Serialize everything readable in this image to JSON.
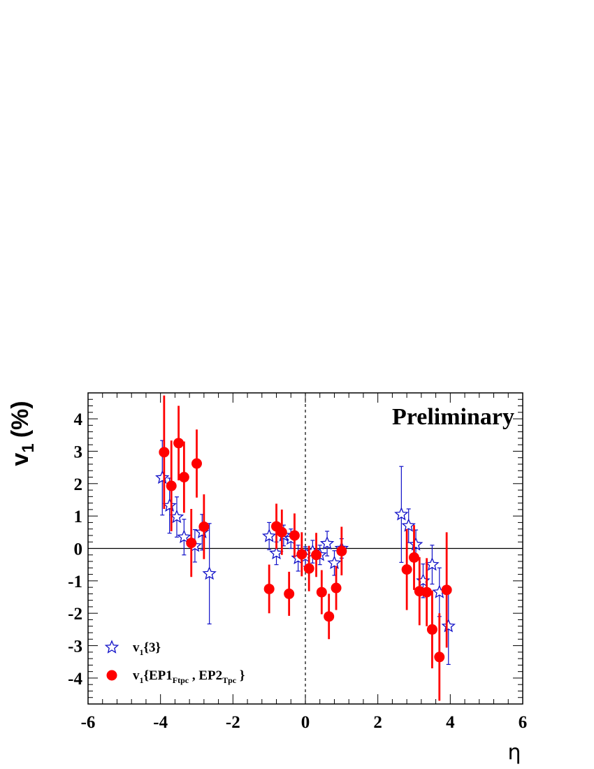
{
  "chart_data": {
    "type": "scatter",
    "annotation": "Preliminary",
    "xlabel": "η",
    "ylabel_main": "v",
    "ylabel_sub": "1",
    "ylabel_unit": "(%)",
    "xlim": [
      -6,
      6
    ],
    "ylim": [
      -4.8,
      4.8
    ],
    "x_ticks": [
      "-6",
      "-4",
      "-2",
      "0",
      "2",
      "4",
      "6"
    ],
    "y_ticks": [
      "4",
      "3",
      "2",
      "1",
      "0",
      "-1",
      "-2",
      "-3",
      "-4"
    ],
    "reference_lines": {
      "horizontal_y": 0,
      "vertical_x_dashed": 0
    },
    "legend_placement": "bottom-left",
    "series": [
      {
        "legend_main": "v",
        "legend_sub": "1",
        "legend_tail": "{3}",
        "marker": "open-star",
        "color": "#1010c8",
        "points": [
          {
            "x": -3.95,
            "y": 2.18,
            "err": 1.15
          },
          {
            "x": -3.75,
            "y": 1.32,
            "err": 0.85
          },
          {
            "x": -3.55,
            "y": 0.97,
            "err": 0.62
          },
          {
            "x": -3.35,
            "y": 0.35,
            "err": 0.55
          },
          {
            "x": -3.05,
            "y": 0.08,
            "err": 0.5
          },
          {
            "x": -2.85,
            "y": 0.5,
            "err": 0.55
          },
          {
            "x": -2.65,
            "y": -0.78,
            "err": 1.55
          },
          {
            "x": -1.0,
            "y": 0.38,
            "err": 0.42
          },
          {
            "x": -0.8,
            "y": -0.15,
            "err": 0.35
          },
          {
            "x": -0.6,
            "y": 0.4,
            "err": 0.32
          },
          {
            "x": -0.4,
            "y": 0.3,
            "err": 0.3
          },
          {
            "x": -0.2,
            "y": -0.3,
            "err": 0.4
          },
          {
            "x": 0.0,
            "y": -0.25,
            "err": 0.3
          },
          {
            "x": 0.2,
            "y": -0.1,
            "err": 0.35
          },
          {
            "x": 0.4,
            "y": -0.2,
            "err": 0.3
          },
          {
            "x": 0.6,
            "y": 0.15,
            "err": 0.38
          },
          {
            "x": 0.8,
            "y": -0.45,
            "err": 0.38
          },
          {
            "x": 1.0,
            "y": 0.0,
            "err": 0.3
          },
          {
            "x": 2.65,
            "y": 1.05,
            "err": 1.48
          },
          {
            "x": 2.85,
            "y": 0.7,
            "err": 0.52
          },
          {
            "x": 3.05,
            "y": 0.12,
            "err": 0.45
          },
          {
            "x": 3.25,
            "y": -1.0,
            "err": 0.52
          },
          {
            "x": 3.5,
            "y": -0.5,
            "err": 0.6
          },
          {
            "x": 3.7,
            "y": -1.35,
            "err": 0.75
          },
          {
            "x": 3.95,
            "y": -2.4,
            "err": 1.18
          }
        ]
      },
      {
        "legend_main": "v",
        "legend_sub": "1",
        "legend_tail": "{EP1",
        "legend_sub2": "Ftpc",
        "legend_mid": " , EP2",
        "legend_sub3": "Tpc",
        "legend_end": " }",
        "marker": "filled-circle",
        "color": "#ff0000",
        "points": [
          {
            "x": -3.9,
            "y": 2.97,
            "err": 1.75
          },
          {
            "x": -3.7,
            "y": 1.93,
            "err": 1.4
          },
          {
            "x": -3.5,
            "y": 3.25,
            "err": 1.15
          },
          {
            "x": -3.35,
            "y": 2.2,
            "err": 1.1
          },
          {
            "x": -3.15,
            "y": 0.17,
            "err": 1.05
          },
          {
            "x": -3.0,
            "y": 2.62,
            "err": 1.05
          },
          {
            "x": -2.8,
            "y": 0.67,
            "err": 1.0
          },
          {
            "x": -1.0,
            "y": -1.25,
            "err": 0.75
          },
          {
            "x": -0.8,
            "y": 0.68,
            "err": 0.7
          },
          {
            "x": -0.65,
            "y": 0.5,
            "err": 0.7
          },
          {
            "x": -0.45,
            "y": -1.4,
            "err": 0.68
          },
          {
            "x": -0.3,
            "y": 0.4,
            "err": 0.68
          },
          {
            "x": -0.1,
            "y": -0.18,
            "err": 0.68
          },
          {
            "x": 0.1,
            "y": -0.62,
            "err": 0.7
          },
          {
            "x": 0.3,
            "y": -0.2,
            "err": 0.68
          },
          {
            "x": 0.45,
            "y": -1.35,
            "err": 0.68
          },
          {
            "x": 0.65,
            "y": -2.1,
            "err": 0.7
          },
          {
            "x": 0.85,
            "y": -1.22,
            "err": 0.68
          },
          {
            "x": 1.0,
            "y": -0.08,
            "err": 0.75
          },
          {
            "x": 2.8,
            "y": -0.65,
            "err": 1.25
          },
          {
            "x": 3.0,
            "y": -0.28,
            "err": 1.0
          },
          {
            "x": 3.15,
            "y": -1.32,
            "err": 1.05
          },
          {
            "x": 3.35,
            "y": -1.35,
            "err": 1.05
          },
          {
            "x": 3.5,
            "y": -2.5,
            "err": 1.2
          },
          {
            "x": 3.7,
            "y": -3.35,
            "err": 1.35
          },
          {
            "x": 3.9,
            "y": -1.28,
            "err": 1.78
          }
        ]
      }
    ]
  }
}
